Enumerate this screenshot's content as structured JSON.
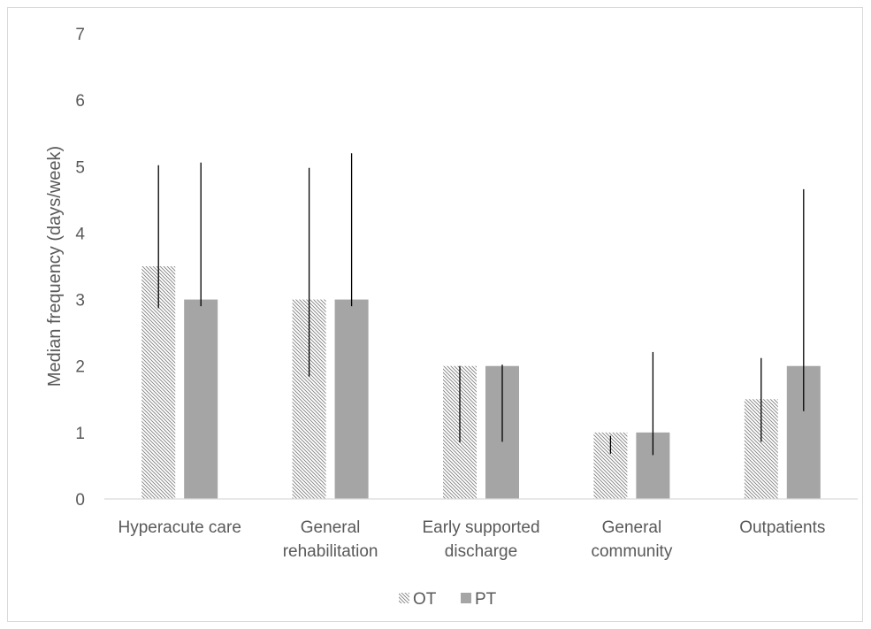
{
  "chart_data": {
    "type": "bar",
    "title": "",
    "xlabel": "",
    "ylabel": "Median frequency (days/week)",
    "ylim": [
      0,
      7
    ],
    "yticks": [
      "0",
      "1",
      "2",
      "3",
      "4",
      "5",
      "6",
      "7"
    ],
    "grid": false,
    "legend_position": "bottom",
    "categories": [
      [
        "Hyperacute care"
      ],
      [
        "General",
        "rehabilitation"
      ],
      [
        "Early supported",
        "discharge"
      ],
      [
        "General",
        "community"
      ],
      [
        "Outpatients"
      ]
    ],
    "series": [
      {
        "name": "OT",
        "pattern": "hatched",
        "color": "#7f7f7f",
        "values": [
          3.5,
          3,
          2,
          1,
          1.5
        ],
        "error_low": [
          2.87,
          1.84,
          0.85,
          0.68,
          0.86
        ],
        "error_high": [
          5.02,
          4.98,
          2.0,
          0.95,
          2.12
        ]
      },
      {
        "name": "PT",
        "pattern": "solid",
        "color": "#a5a5a5",
        "values": [
          3,
          3,
          2,
          1,
          2
        ],
        "error_low": [
          2.9,
          2.9,
          0.86,
          0.66,
          1.32
        ],
        "error_high": [
          5.06,
          5.2,
          2.02,
          2.21,
          4.66
        ]
      }
    ]
  },
  "colors": {
    "axis": "#d9d9d9",
    "text": "#595959",
    "error_bar": "#000000",
    "frame": "#d9d9d9"
  }
}
